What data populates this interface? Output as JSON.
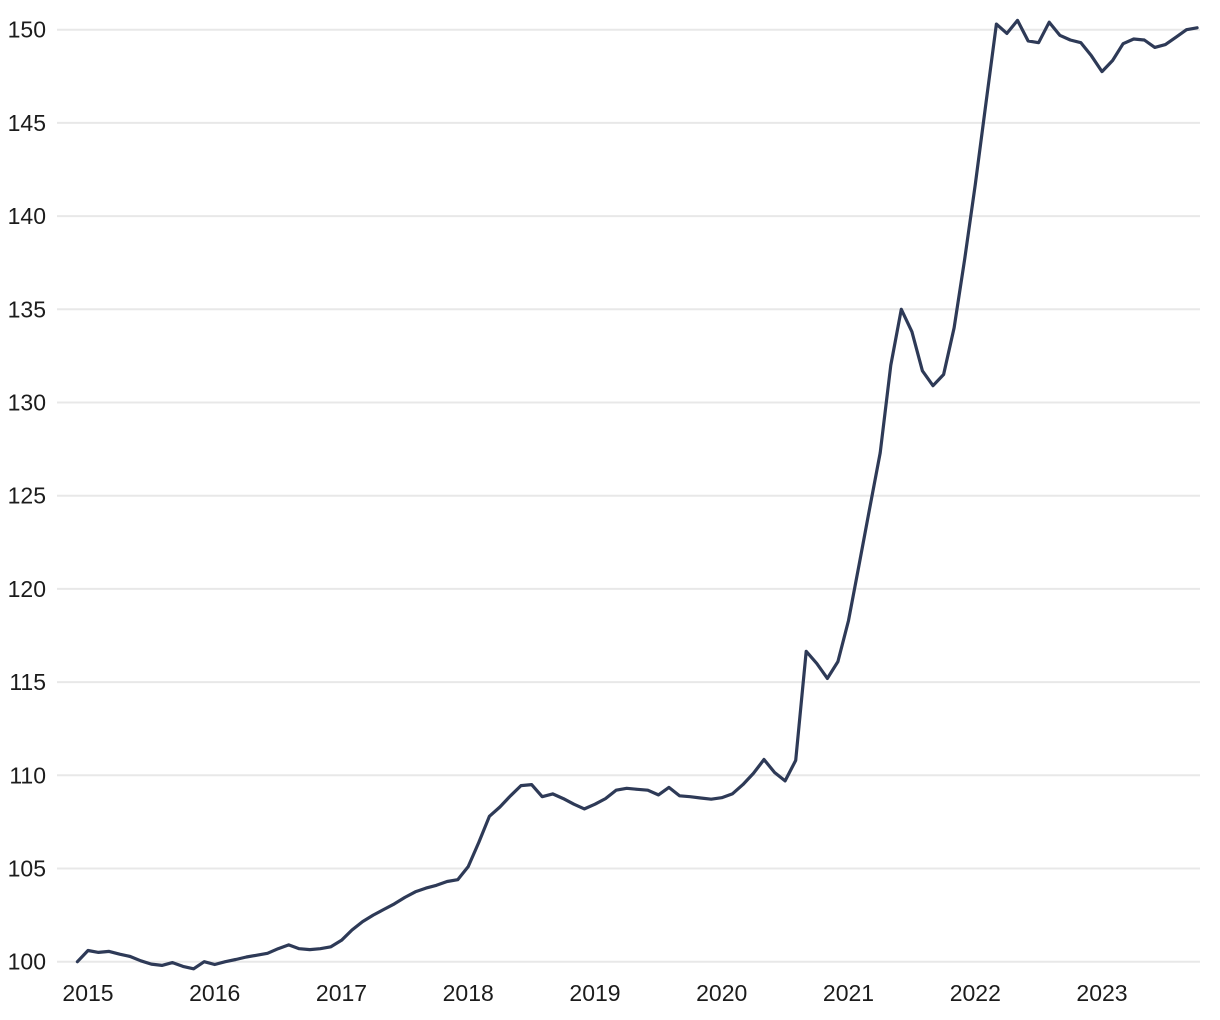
{
  "chart_data": {
    "type": "line",
    "title": "",
    "xlabel": "",
    "ylabel": "",
    "x_start": "2014-12",
    "frequency": "monthly",
    "x_end": "2023-10",
    "values": [
      100.0,
      100.6,
      100.5,
      100.55,
      100.4,
      100.28,
      100.05,
      99.87,
      99.8,
      99.95,
      99.75,
      99.62,
      100.0,
      99.85,
      100.0,
      100.12,
      100.25,
      100.35,
      100.45,
      100.7,
      100.9,
      100.7,
      100.65,
      100.7,
      100.8,
      101.15,
      101.7,
      102.15,
      102.5,
      102.8,
      103.1,
      103.45,
      103.75,
      103.95,
      104.1,
      104.3,
      104.4,
      105.1,
      106.4,
      107.8,
      108.3,
      108.9,
      109.45,
      109.5,
      108.85,
      109.0,
      108.75,
      108.45,
      108.2,
      108.45,
      108.75,
      109.2,
      109.3,
      109.25,
      109.2,
      108.95,
      109.35,
      108.9,
      108.85,
      108.78,
      108.72,
      108.8,
      109.0,
      109.5,
      110.1,
      110.85,
      110.15,
      109.7,
      110.8,
      116.65,
      116.0,
      115.2,
      116.1,
      118.3,
      121.3,
      124.3,
      127.3,
      132.0,
      135.0,
      133.8,
      131.7,
      130.9,
      131.5,
      134.0,
      137.7,
      141.7,
      146.0,
      150.3,
      149.8,
      150.5,
      149.4,
      149.3,
      150.4,
      149.7,
      149.45,
      149.3,
      148.6,
      147.75,
      148.35,
      149.25,
      149.5,
      149.45,
      149.05,
      149.2,
      149.6,
      150.0,
      150.1
    ],
    "y_ticks": [
      100,
      105,
      110,
      115,
      120,
      125,
      130,
      135,
      140,
      145,
      150
    ],
    "x_tick_labels": [
      "2015",
      "2016",
      "2017",
      "2018",
      "2019",
      "2020",
      "2021",
      "2022",
      "2023"
    ],
    "ylim": [
      99.4,
      150.9
    ],
    "grid": "horizontal",
    "legend": "none",
    "line_color": "#2e3a57",
    "gridline_color": "#e8e8e8",
    "tick_label_color": "#1c1c1c",
    "background_color": "#ffffff"
  }
}
